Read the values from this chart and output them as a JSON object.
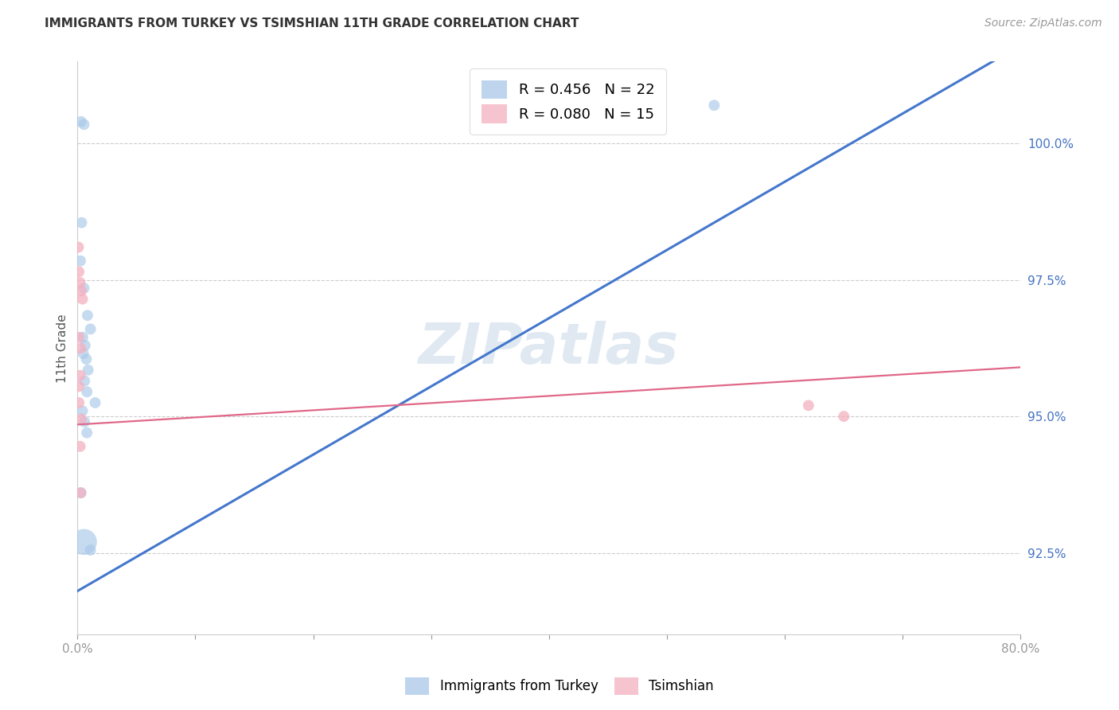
{
  "title": "IMMIGRANTS FROM TURKEY VS TSIMSHIAN 11TH GRADE CORRELATION CHART",
  "source": "Source: ZipAtlas.com",
  "ylabel": "11th Grade",
  "x_min": 0.0,
  "x_max": 80.0,
  "y_min": 91.0,
  "y_max": 101.5,
  "right_yticks": [
    92.5,
    95.0,
    97.5,
    100.0
  ],
  "blue_R": 0.456,
  "blue_N": 22,
  "pink_R": 0.08,
  "pink_N": 15,
  "blue_color": "#a8c8e8",
  "pink_color": "#f4b0c0",
  "blue_line_color": "#4477cc",
  "pink_line_color": "#e06888",
  "blue_scatter": [
    [
      0.3,
      100.4
    ],
    [
      0.55,
      100.35
    ],
    [
      0.35,
      98.55
    ],
    [
      0.25,
      97.85
    ],
    [
      0.55,
      97.35
    ],
    [
      0.85,
      96.85
    ],
    [
      1.1,
      96.6
    ],
    [
      0.45,
      96.45
    ],
    [
      0.65,
      96.3
    ],
    [
      0.5,
      96.15
    ],
    [
      0.75,
      96.05
    ],
    [
      0.9,
      95.85
    ],
    [
      0.6,
      95.65
    ],
    [
      0.8,
      95.45
    ],
    [
      1.5,
      95.25
    ],
    [
      0.42,
      95.1
    ],
    [
      0.6,
      94.9
    ],
    [
      0.8,
      94.7
    ],
    [
      0.3,
      93.6
    ],
    [
      0.55,
      92.7
    ],
    [
      1.1,
      92.55
    ],
    [
      54.0,
      100.7
    ]
  ],
  "blue_sizes": [
    100,
    100,
    100,
    100,
    100,
    100,
    100,
    100,
    100,
    100,
    100,
    100,
    100,
    100,
    100,
    100,
    100,
    100,
    100,
    100,
    100,
    100
  ],
  "blue_big_idx": 19,
  "blue_big_size": 550,
  "pink_scatter": [
    [
      0.08,
      98.1
    ],
    [
      0.12,
      97.65
    ],
    [
      0.22,
      97.45
    ],
    [
      0.32,
      97.3
    ],
    [
      0.42,
      97.15
    ],
    [
      0.12,
      96.45
    ],
    [
      0.28,
      96.25
    ],
    [
      0.22,
      95.75
    ],
    [
      0.12,
      95.55
    ],
    [
      0.12,
      95.25
    ],
    [
      0.32,
      94.95
    ],
    [
      0.22,
      94.45
    ],
    [
      0.28,
      93.6
    ],
    [
      62.0,
      95.2
    ],
    [
      65.0,
      95.0
    ]
  ],
  "pink_sizes": [
    100,
    100,
    100,
    100,
    100,
    100,
    100,
    100,
    100,
    100,
    100,
    100,
    100,
    100,
    100
  ],
  "blue_line_x": [
    0.0,
    80.0
  ],
  "blue_line_y": [
    91.8,
    101.8
  ],
  "pink_line_x": [
    0.0,
    80.0
  ],
  "pink_line_y": [
    94.85,
    95.9
  ],
  "watermark_text": "ZIPatlas",
  "watermark_color": "#c8d8e8",
  "title_fontsize": 11,
  "source_fontsize": 10,
  "axis_label_fontsize": 11,
  "tick_fontsize": 11,
  "legend_fontsize": 13
}
